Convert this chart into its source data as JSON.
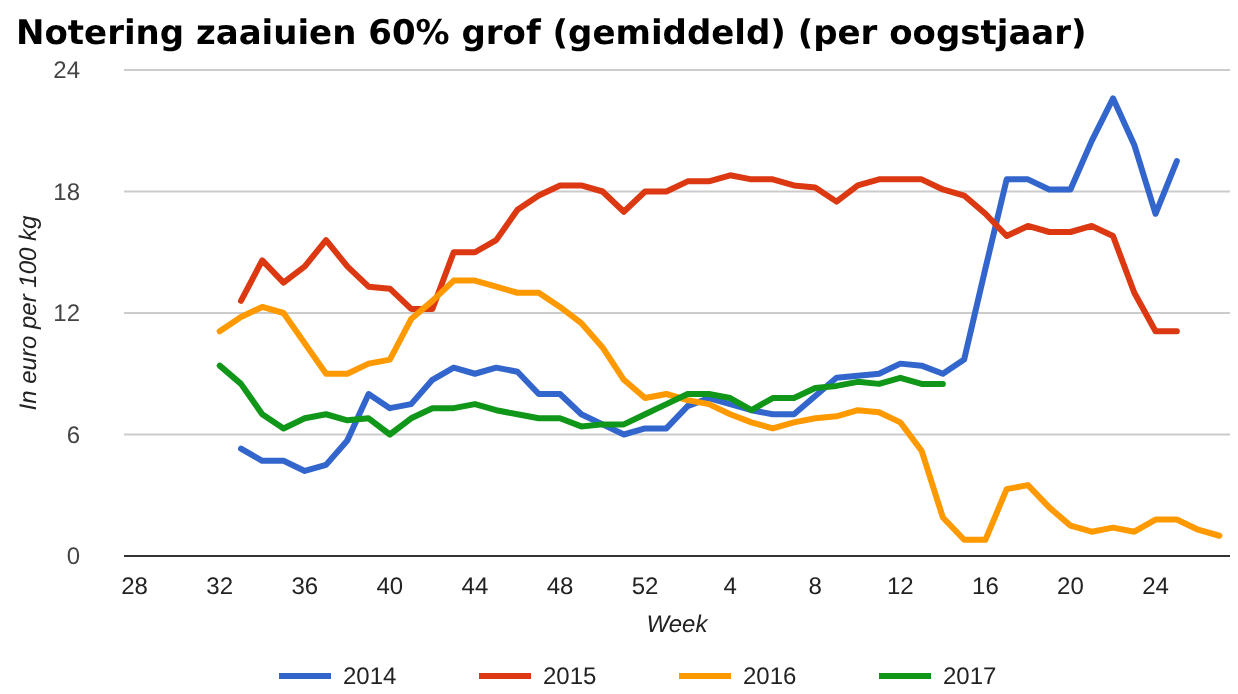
{
  "chart_data": {
    "type": "line",
    "title": "Notering zaaiuien 60% grof (gemiddeld) (per oogstjaar)",
    "xlabel": "Week",
    "ylabel": "In euro per 100 kg",
    "categories": [
      "28",
      null,
      null,
      null,
      "32",
      null,
      null,
      null,
      "36",
      null,
      null,
      null,
      "40",
      null,
      null,
      null,
      "44",
      null,
      null,
      null,
      "48",
      null,
      null,
      null,
      "52",
      null,
      null,
      null,
      "4",
      null,
      null,
      null,
      "8",
      null,
      null,
      null,
      "12",
      null,
      null,
      null,
      "16",
      null,
      null,
      null,
      "20",
      null,
      null,
      null,
      "24",
      null,
      null,
      null
    ],
    "series": [
      {
        "name": "2014",
        "color": "#3366cc",
        "values": [
          null,
          null,
          null,
          null,
          null,
          5.3,
          4.7,
          4.7,
          4.2,
          4.5,
          5.7,
          8.0,
          7.3,
          7.5,
          8.7,
          9.3,
          9.0,
          9.3,
          9.1,
          8.0,
          8.0,
          7.0,
          6.5,
          6.0,
          6.3,
          6.3,
          7.4,
          7.8,
          7.5,
          7.2,
          7.0,
          7.0,
          7.9,
          8.8,
          8.9,
          9.0,
          9.5,
          9.4,
          9.0,
          9.7,
          14.2,
          18.6,
          18.6,
          18.1,
          18.1,
          20.5,
          22.6,
          20.3,
          16.9,
          19.5,
          null,
          null
        ]
      },
      {
        "name": "2015",
        "color": "#dc3912",
        "values": [
          null,
          null,
          null,
          null,
          null,
          12.6,
          14.6,
          13.5,
          14.3,
          15.6,
          14.3,
          13.3,
          13.2,
          12.2,
          12.2,
          15.0,
          15.0,
          15.6,
          17.1,
          17.8,
          18.3,
          18.3,
          18.0,
          17.0,
          18.0,
          18.0,
          18.5,
          18.5,
          18.8,
          18.6,
          18.6,
          18.3,
          18.2,
          17.5,
          18.3,
          18.6,
          18.6,
          18.6,
          18.1,
          17.8,
          16.9,
          15.8,
          16.3,
          16.0,
          16.0,
          16.3,
          15.8,
          13.0,
          11.1,
          11.1,
          null,
          null
        ]
      },
      {
        "name": "2016",
        "color": "#ff9900",
        "values": [
          null,
          null,
          null,
          null,
          11.1,
          11.8,
          12.3,
          12.0,
          10.5,
          9.0,
          9.0,
          9.5,
          9.7,
          11.7,
          12.6,
          13.6,
          13.6,
          13.3,
          13.0,
          13.0,
          12.3,
          11.5,
          10.3,
          8.7,
          7.8,
          8.0,
          7.7,
          7.5,
          7.0,
          6.6,
          6.3,
          6.6,
          6.8,
          6.9,
          7.2,
          7.1,
          6.6,
          5.2,
          1.9,
          0.8,
          0.8,
          3.3,
          3.5,
          2.4,
          1.5,
          1.2,
          1.4,
          1.2,
          1.8,
          1.8,
          1.3,
          1.0
        ]
      },
      {
        "name": "2017",
        "color": "#109618",
        "values": [
          null,
          null,
          null,
          null,
          9.4,
          8.5,
          7.0,
          6.3,
          6.8,
          7.0,
          6.7,
          6.8,
          6.0,
          6.8,
          7.3,
          7.3,
          7.5,
          7.2,
          7.0,
          6.8,
          6.8,
          6.4,
          6.5,
          6.5,
          7.0,
          7.5,
          8.0,
          8.0,
          7.8,
          7.2,
          7.8,
          7.8,
          8.3,
          8.4,
          8.6,
          8.5,
          8.8,
          8.5,
          8.5,
          null,
          null,
          null,
          null,
          null,
          null,
          null,
          null,
          null,
          null,
          null,
          null,
          null
        ]
      }
    ],
    "ylim": [
      0,
      24
    ],
    "yticks": [
      0,
      6,
      12,
      18,
      24
    ],
    "grid": "y",
    "legend": "bottom",
    "marker": "none",
    "line_style": "solid"
  }
}
